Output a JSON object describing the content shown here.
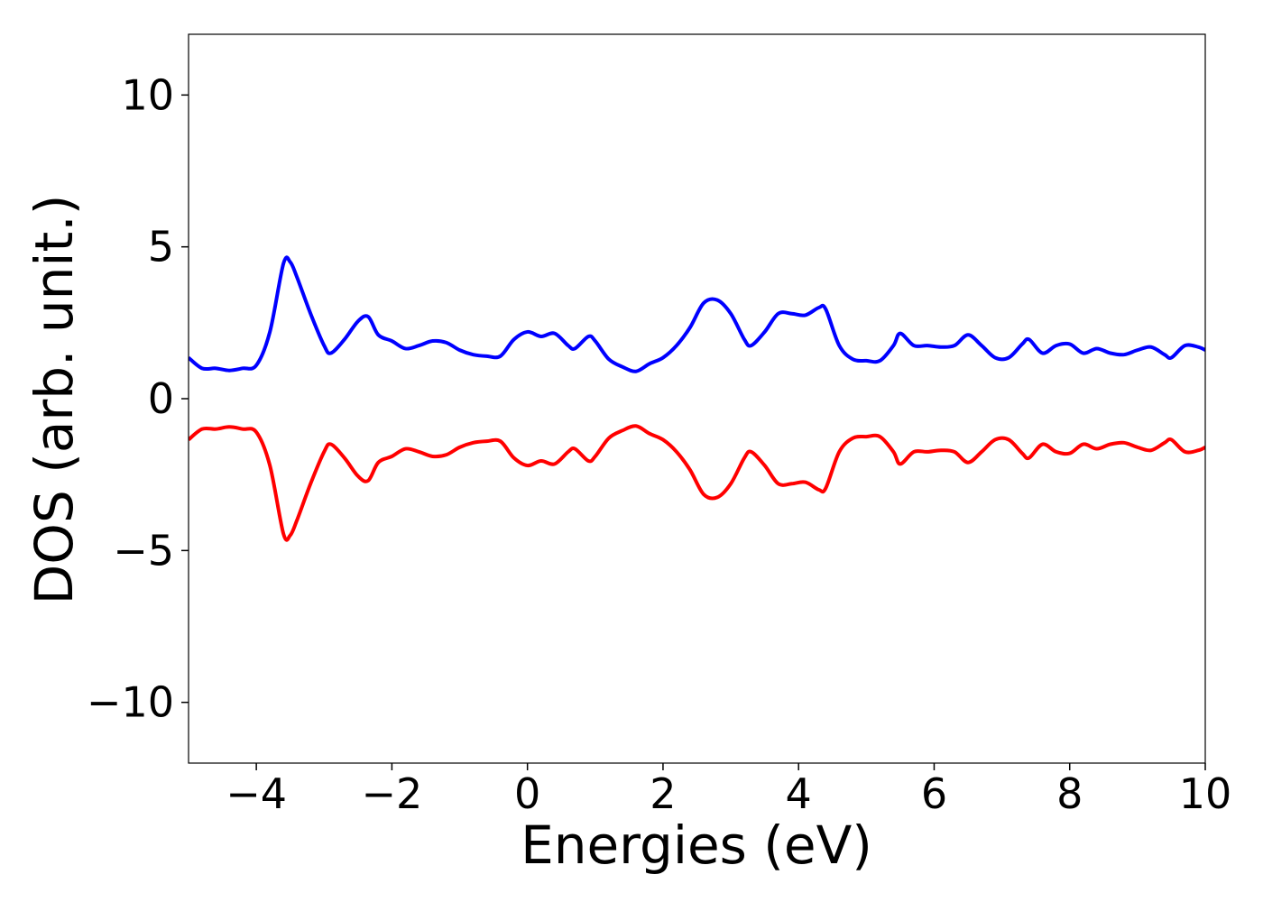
{
  "chart_data": {
    "type": "line",
    "x_label": "Energies (eV)",
    "y_label": "DOS (arb. unit.)",
    "x": [
      -5,
      -4.8,
      -4.6,
      -4.4,
      -4.2,
      -4.0,
      -3.8,
      -3.6,
      -3.5,
      -3.4,
      -3.2,
      -3.0,
      -2.9,
      -2.7,
      -2.5,
      -2.35,
      -2.2,
      -2.0,
      -1.8,
      -1.6,
      -1.4,
      -1.2,
      -1.0,
      -0.8,
      -0.6,
      -0.4,
      -0.2,
      0,
      0.2,
      0.4,
      0.6,
      0.7,
      0.9,
      1.0,
      1.2,
      1.4,
      1.6,
      1.8,
      2.0,
      2.2,
      2.4,
      2.6,
      2.8,
      3.0,
      3.2,
      3.3,
      3.5,
      3.7,
      3.9,
      4.1,
      4.3,
      4.4,
      4.6,
      4.8,
      5.0,
      5.2,
      5.4,
      5.5,
      5.7,
      5.9,
      6.1,
      6.3,
      6.5,
      6.7,
      6.9,
      7.1,
      7.3,
      7.4,
      7.6,
      7.8,
      8.0,
      8.2,
      8.4,
      8.6,
      8.8,
      9.0,
      9.2,
      9.4,
      9.5,
      9.7,
      9.9,
      10
    ],
    "series": [
      {
        "color": "#0000ff",
        "values": [
          1.35,
          1.0,
          1.0,
          0.93,
          1.0,
          1.1,
          2.2,
          4.45,
          4.5,
          4.0,
          2.8,
          1.75,
          1.5,
          1.95,
          2.55,
          2.7,
          2.1,
          1.9,
          1.65,
          1.75,
          1.9,
          1.85,
          1.6,
          1.45,
          1.4,
          1.4,
          1.95,
          2.2,
          2.05,
          2.15,
          1.75,
          1.65,
          2.05,
          1.9,
          1.3,
          1.05,
          0.9,
          1.15,
          1.35,
          1.75,
          2.35,
          3.15,
          3.25,
          2.8,
          1.95,
          1.75,
          2.2,
          2.8,
          2.8,
          2.75,
          3.0,
          2.95,
          1.75,
          1.3,
          1.25,
          1.25,
          1.75,
          2.15,
          1.75,
          1.75,
          1.7,
          1.75,
          2.1,
          1.75,
          1.35,
          1.35,
          1.8,
          1.95,
          1.5,
          1.75,
          1.8,
          1.5,
          1.65,
          1.5,
          1.45,
          1.6,
          1.7,
          1.45,
          1.35,
          1.75,
          1.7,
          1.6
        ]
      },
      {
        "color": "#ff0000",
        "values": [
          -1.35,
          -1.0,
          -1.0,
          -0.93,
          -1.0,
          -1.1,
          -2.2,
          -4.45,
          -4.5,
          -4.0,
          -2.8,
          -1.75,
          -1.5,
          -1.95,
          -2.55,
          -2.7,
          -2.1,
          -1.9,
          -1.65,
          -1.75,
          -1.9,
          -1.85,
          -1.6,
          -1.45,
          -1.4,
          -1.4,
          -1.95,
          -2.2,
          -2.05,
          -2.15,
          -1.75,
          -1.65,
          -2.05,
          -1.9,
          -1.3,
          -1.05,
          -0.9,
          -1.15,
          -1.35,
          -1.75,
          -2.35,
          -3.15,
          -3.25,
          -2.8,
          -1.95,
          -1.75,
          -2.2,
          -2.8,
          -2.8,
          -2.75,
          -3.0,
          -2.95,
          -1.75,
          -1.3,
          -1.25,
          -1.25,
          -1.75,
          -2.15,
          -1.75,
          -1.75,
          -1.7,
          -1.75,
          -2.1,
          -1.75,
          -1.35,
          -1.35,
          -1.8,
          -1.95,
          -1.5,
          -1.75,
          -1.8,
          -1.5,
          -1.65,
          -1.5,
          -1.45,
          -1.6,
          -1.7,
          -1.45,
          -1.35,
          -1.75,
          -1.7,
          -1.6
        ]
      }
    ],
    "xlim": [
      -5,
      10
    ],
    "xticks": [
      {
        "value": -4,
        "label": "−4"
      },
      {
        "value": -2,
        "label": "−2"
      },
      0,
      2,
      4,
      6,
      8,
      10
    ],
    "ylim": [
      -12,
      12
    ],
    "yticks": [
      {
        "value": -10,
        "label": "−10"
      },
      {
        "value": -5,
        "label": "−5"
      },
      0,
      5,
      10
    ],
    "grid": false
  }
}
